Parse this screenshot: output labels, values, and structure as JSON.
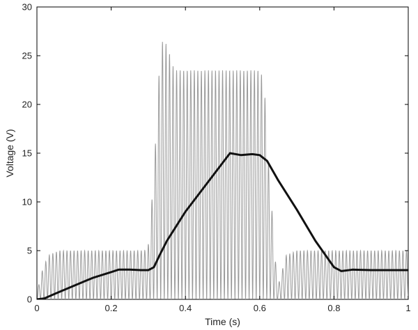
{
  "chart_data": {
    "type": "line",
    "title": "",
    "xlabel": "Time (s)",
    "ylabel": "Voltage (V)",
    "xlim": [
      0,
      1
    ],
    "ylim": [
      0,
      30
    ],
    "x_ticks": [
      0,
      0.2,
      0.4,
      0.6,
      0.8,
      1
    ],
    "x_tick_labels": [
      "0",
      "0.2",
      "0.4",
      "0.6",
      "0.8",
      "1"
    ],
    "y_ticks": [
      0,
      5,
      10,
      15,
      20,
      25,
      30
    ],
    "y_tick_labels": [
      "0",
      "5",
      "10",
      "15",
      "20",
      "25",
      "30"
    ],
    "grid": false,
    "legend": "none",
    "series": [
      {
        "style": "thin-gray-oscillation",
        "color": "#9a9a9a",
        "oscillation_frequency_hz": 105,
        "envelope": [
          [
            0,
            0.5
          ],
          [
            0.01,
            2.5
          ],
          [
            0.03,
            4.5
          ],
          [
            0.06,
            5.0
          ],
          [
            0.29,
            5.0
          ],
          [
            0.305,
            6.0
          ],
          [
            0.31,
            10.5
          ],
          [
            0.32,
            16.5
          ],
          [
            0.33,
            24.0
          ],
          [
            0.34,
            27.0
          ],
          [
            0.355,
            25.5
          ],
          [
            0.37,
            23.5
          ],
          [
            0.6,
            23.5
          ],
          [
            0.612,
            22.5
          ],
          [
            0.62,
            16.0
          ],
          [
            0.63,
            11.0
          ],
          [
            0.64,
            5.0
          ],
          [
            0.648,
            1.5
          ],
          [
            0.655,
            2.0
          ],
          [
            0.67,
            4.5
          ],
          [
            0.7,
            5.0
          ],
          [
            1,
            5.0
          ]
        ]
      },
      {
        "style": "thick-black-average",
        "color": "#111111",
        "points": [
          [
            0,
            0
          ],
          [
            0.02,
            0.1
          ],
          [
            0.05,
            0.6
          ],
          [
            0.1,
            1.4
          ],
          [
            0.15,
            2.2
          ],
          [
            0.2,
            2.8
          ],
          [
            0.22,
            3.05
          ],
          [
            0.25,
            3.05
          ],
          [
            0.28,
            3.0
          ],
          [
            0.3,
            3.0
          ],
          [
            0.315,
            3.3
          ],
          [
            0.33,
            4.5
          ],
          [
            0.35,
            6.0
          ],
          [
            0.4,
            9.0
          ],
          [
            0.45,
            11.5
          ],
          [
            0.5,
            14.0
          ],
          [
            0.52,
            15.0
          ],
          [
            0.55,
            14.8
          ],
          [
            0.58,
            14.9
          ],
          [
            0.6,
            14.8
          ],
          [
            0.62,
            14.2
          ],
          [
            0.65,
            12.2
          ],
          [
            0.7,
            9.2
          ],
          [
            0.75,
            6.0
          ],
          [
            0.8,
            3.3
          ],
          [
            0.82,
            2.9
          ],
          [
            0.85,
            3.05
          ],
          [
            0.9,
            3.0
          ],
          [
            1,
            3.0
          ]
        ]
      }
    ]
  }
}
